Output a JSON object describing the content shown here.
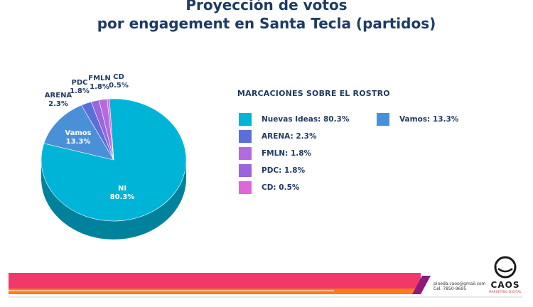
{
  "title_line1": "Proyección de votos",
  "title_line2": "por engagement en Santa Tecla (partidos)",
  "legend_title": "MARCACIONES SOBRE EL ROSTRO",
  "chart_data": {
    "type": "pie",
    "title": "Proyección de votos por engagement en Santa Tecla (partidos)",
    "legend_title": "MARCACIONES SOBRE EL ROSTRO",
    "legend_placement": "right",
    "slices": [
      {
        "label": "NI",
        "legend": "Nuevas Ideas: 80.3%",
        "value": 80.3,
        "value_label": "80.3%",
        "color": "#00b4d8"
      },
      {
        "label": "Vamos",
        "legend": "Vamos: 13.3%",
        "value": 13.3,
        "value_label": "13.3%",
        "color": "#4a90d9"
      },
      {
        "label": "ARENA",
        "legend": "ARENA: 2.3%",
        "value": 2.3,
        "value_label": "2.3%",
        "color": "#5a6fd8"
      },
      {
        "label": "PDC",
        "legend": "PDC: 1.8%",
        "value": 1.8,
        "value_label": "1.8%",
        "color": "#9966dd"
      },
      {
        "label": "FMLN",
        "legend": "FMLN: 1.8%",
        "value": 1.8,
        "value_label": "1.8%",
        "color": "#b36ae0"
      },
      {
        "label": "CD",
        "legend": "CD: 0.5%",
        "value": 0.5,
        "value_label": "0.5%",
        "color": "#e066d8"
      }
    ]
  },
  "footer": {
    "email": "pineda.caos@gmail.com",
    "phone": "Cel. 7850-9695",
    "brand_name": "CAOS",
    "brand_tagline": "MARKETING DIGITAL",
    "colors": {
      "band_red": "#f0386b",
      "band_orange": "#ff7a1a",
      "accent_purple": "#8a1c7c"
    }
  }
}
